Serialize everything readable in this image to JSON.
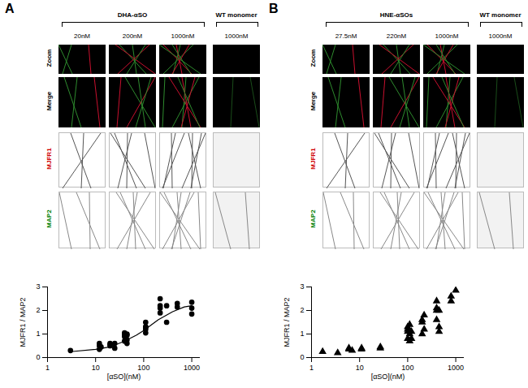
{
  "figure": {
    "panels": [
      {
        "label": "A",
        "group_label": "DHA-αSO",
        "columns": [
          "20nM",
          "200nM",
          "1000nM"
        ],
        "control_label": "WT monomer",
        "control_column": "1000nM",
        "rows": [
          "Zoom",
          "Merge",
          "MJFR1",
          "MAP2"
        ]
      },
      {
        "label": "B",
        "group_label": "HNE-αSOs",
        "columns": [
          "27.5nM",
          "220nM",
          "1000nM"
        ],
        "control_label": "WT monomer",
        "control_column": "1000nM",
        "rows": [
          "Zoom",
          "Merge",
          "MJFR1",
          "MAP2"
        ]
      }
    ]
  },
  "chart_data": [
    {
      "type": "scatter",
      "x_label": "[αSO](nM)",
      "y_label": "MJFR1 / MAP2",
      "log": "x",
      "xlim": [
        1,
        1500
      ],
      "ylim": [
        0,
        3
      ],
      "xticks": [
        1,
        10,
        100,
        1000
      ],
      "yticks": [
        0,
        1,
        2,
        3
      ],
      "series": [
        {
          "type": "scatter",
          "marker": "circle",
          "color": "#000000",
          "x": [
            3,
            12,
            12,
            12,
            13,
            20,
            20,
            20,
            25,
            25,
            40,
            40,
            40,
            40,
            45,
            45,
            45,
            45,
            110,
            110,
            110,
            110,
            110,
            220,
            220,
            220,
            220,
            300,
            300,
            500,
            500,
            1000,
            1000,
            1000
          ],
          "values": [
            0.3,
            0.35,
            0.5,
            0.6,
            0.45,
            0.5,
            0.55,
            0.6,
            0.4,
            0.6,
            0.7,
            0.9,
            1.0,
            1.05,
            0.6,
            0.75,
            0.95,
            1.0,
            1.05,
            1.2,
            1.3,
            1.3,
            1.5,
            1.9,
            2.1,
            2.2,
            2.5,
            1.5,
            2.2,
            2.15,
            2.3,
            1.85,
            2.1,
            2.35
          ]
        },
        {
          "type": "line",
          "color": "#000000",
          "x": [
            3,
            10,
            20,
            40,
            70,
            100,
            200,
            400,
            700,
            1000
          ],
          "values": [
            0.25,
            0.35,
            0.45,
            0.7,
            0.95,
            1.15,
            1.6,
            1.95,
            2.15,
            2.2
          ]
        }
      ]
    },
    {
      "type": "scatter",
      "x_label": "[αSO](nM)",
      "y_label": "MJFR1 / MAP2",
      "log": "x",
      "xlim": [
        1,
        1500
      ],
      "ylim": [
        0,
        3
      ],
      "xticks": [
        1,
        10,
        100,
        1000
      ],
      "yticks": [
        0,
        1,
        2,
        3
      ],
      "series": [
        {
          "type": "scatter",
          "marker": "triangle",
          "color": "#000000",
          "x": [
            1.7,
            3.5,
            6,
            6,
            7,
            11,
            11,
            27,
            27,
            100,
            100,
            100,
            100,
            110,
            110,
            110,
            120,
            120,
            200,
            200,
            200,
            220,
            220,
            400,
            400,
            400,
            400,
            450,
            450,
            450,
            800,
            800,
            1000
          ],
          "values": [
            0.25,
            0.2,
            0.35,
            0.4,
            0.3,
            0.35,
            0.4,
            0.4,
            0.45,
            0.8,
            1.1,
            1.2,
            1.3,
            0.7,
            1.0,
            1.4,
            0.8,
            1.1,
            1.0,
            1.5,
            1.6,
            1.2,
            1.8,
            1.6,
            2.0,
            2.1,
            2.4,
            1.1,
            1.3,
            2.0,
            2.4,
            2.6,
            2.85
          ]
        }
      ]
    }
  ]
}
